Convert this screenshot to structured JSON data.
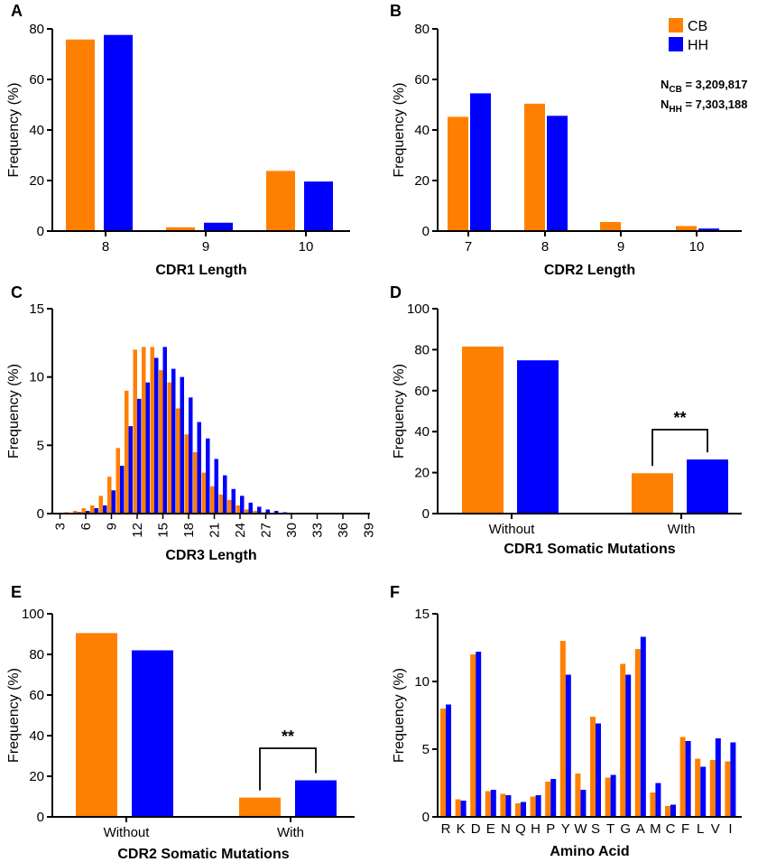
{
  "colors": {
    "CB": "#ff8000",
    "HH": "#0000ff",
    "axis": "#000000"
  },
  "legend": {
    "entries": [
      "CB",
      "HH"
    ]
  },
  "annotations": {
    "n_cb": "N",
    "n_cb_sub": "CB",
    "n_cb_val": " = 3,209,817",
    "n_hh": "N",
    "n_hh_sub": "HH",
    "n_hh_val": " = 7,303,188"
  },
  "chart_data": [
    {
      "panel": "A",
      "type": "bar",
      "xlabel": "CDR1 Length",
      "ylabel": "Frequency (%)",
      "ylim": [
        0,
        80
      ],
      "yticks": [
        0,
        20,
        40,
        60,
        80
      ],
      "categories": [
        "8",
        "9",
        "10"
      ],
      "series": [
        {
          "name": "CB",
          "values": [
            75.8,
            1.5,
            23.8
          ]
        },
        {
          "name": "HH",
          "values": [
            77.6,
            3.3,
            19.6
          ]
        }
      ]
    },
    {
      "panel": "B",
      "type": "bar",
      "xlabel": "CDR2 Length",
      "ylabel": "Frequency (%)",
      "ylim": [
        0,
        80
      ],
      "yticks": [
        0,
        20,
        40,
        60,
        80
      ],
      "categories": [
        "7",
        "8",
        "9",
        "10"
      ],
      "series": [
        {
          "name": "CB",
          "values": [
            45.2,
            50.4,
            3.6,
            2.0
          ]
        },
        {
          "name": "HH",
          "values": [
            54.5,
            45.6,
            0,
            1.0
          ]
        }
      ]
    },
    {
      "panel": "C",
      "type": "bar",
      "xlabel": "CDR3 Length",
      "ylabel": "Frequency (%)",
      "ylim": [
        0,
        15
      ],
      "yticks": [
        0,
        5,
        10,
        15
      ],
      "categories": [
        "3",
        "4",
        "5",
        "6",
        "7",
        "8",
        "9",
        "10",
        "11",
        "12",
        "13",
        "14",
        "15",
        "16",
        "17",
        "18",
        "19",
        "20",
        "21",
        "22",
        "23",
        "24",
        "25",
        "26",
        "27",
        "28",
        "29",
        "30",
        "31",
        "32",
        "33",
        "34",
        "35",
        "36",
        "37",
        "38",
        "39"
      ],
      "tick_labels": [
        "3",
        "6",
        "9",
        "12",
        "15",
        "18",
        "21",
        "24",
        "27",
        "30",
        "33",
        "36",
        "39"
      ],
      "series": [
        {
          "name": "CB",
          "values": [
            0.05,
            0.1,
            0.2,
            0.4,
            0.6,
            1.3,
            2.7,
            4.8,
            9.0,
            12.0,
            12.2,
            12.2,
            10.5,
            9.6,
            7.7,
            5.8,
            4.5,
            3.0,
            2.0,
            1.4,
            1.0,
            0.6,
            0.3,
            0.2,
            0.1,
            0.05,
            0.03,
            0.02,
            0.01,
            0,
            0,
            0,
            0,
            0,
            0,
            0,
            0
          ]
        },
        {
          "name": "HH",
          "values": [
            0.03,
            0.05,
            0.1,
            0.2,
            0.4,
            0.6,
            1.7,
            3.5,
            6.4,
            8.4,
            9.6,
            11.4,
            12.2,
            10.6,
            10.0,
            8.5,
            6.7,
            5.5,
            4.0,
            2.8,
            1.8,
            1.3,
            0.8,
            0.5,
            0.3,
            0.2,
            0.1,
            0.05,
            0.03,
            0.02,
            0.01,
            0,
            0,
            0,
            0,
            0,
            0
          ]
        }
      ]
    },
    {
      "panel": "D",
      "type": "bar",
      "xlabel": "CDR1 Somatic Mutations",
      "ylabel": "Frequency (%)",
      "ylim": [
        0,
        100
      ],
      "yticks": [
        0,
        20,
        40,
        60,
        80,
        100
      ],
      "categories": [
        "Without",
        "WIth"
      ],
      "series": [
        {
          "name": "CB",
          "values": [
            81.5,
            19.7
          ]
        },
        {
          "name": "HH",
          "values": [
            74.8,
            26.4
          ]
        }
      ],
      "significance": {
        "category": 1,
        "label": "**"
      }
    },
    {
      "panel": "E",
      "type": "bar",
      "xlabel": "CDR2 Somatic Mutations",
      "ylabel": "Frequency (%)",
      "ylim": [
        0,
        100
      ],
      "yticks": [
        0,
        20,
        40,
        60,
        80,
        100
      ],
      "categories": [
        "Without",
        "With"
      ],
      "series": [
        {
          "name": "CB",
          "values": [
            90.5,
            9.5
          ]
        },
        {
          "name": "HH",
          "values": [
            82.0,
            18.0
          ]
        }
      ],
      "significance": {
        "category": 1,
        "label": "**"
      }
    },
    {
      "panel": "F",
      "type": "bar",
      "xlabel": "Amino Acid",
      "ylabel": "Frequency (%)",
      "ylim": [
        0,
        15
      ],
      "yticks": [
        0,
        5,
        10,
        15
      ],
      "categories": [
        "R",
        "K",
        "D",
        "E",
        "N",
        "Q",
        "H",
        "P",
        "Y",
        "W",
        "S",
        "T",
        "G",
        "A",
        "M",
        "C",
        "F",
        "L",
        "V",
        "I"
      ],
      "series": [
        {
          "name": "CB",
          "values": [
            8.0,
            1.3,
            12.0,
            1.9,
            1.7,
            1.0,
            1.5,
            2.6,
            13.0,
            3.2,
            7.4,
            2.9,
            11.3,
            12.4,
            1.8,
            0.8,
            5.9,
            4.3,
            4.2,
            4.1
          ]
        },
        {
          "name": "HH",
          "values": [
            8.3,
            1.2,
            12.2,
            2.0,
            1.6,
            1.1,
            1.6,
            2.8,
            10.5,
            2.0,
            6.9,
            3.1,
            10.5,
            13.3,
            2.5,
            0.9,
            5.6,
            3.7,
            5.8,
            5.5
          ]
        }
      ]
    }
  ]
}
